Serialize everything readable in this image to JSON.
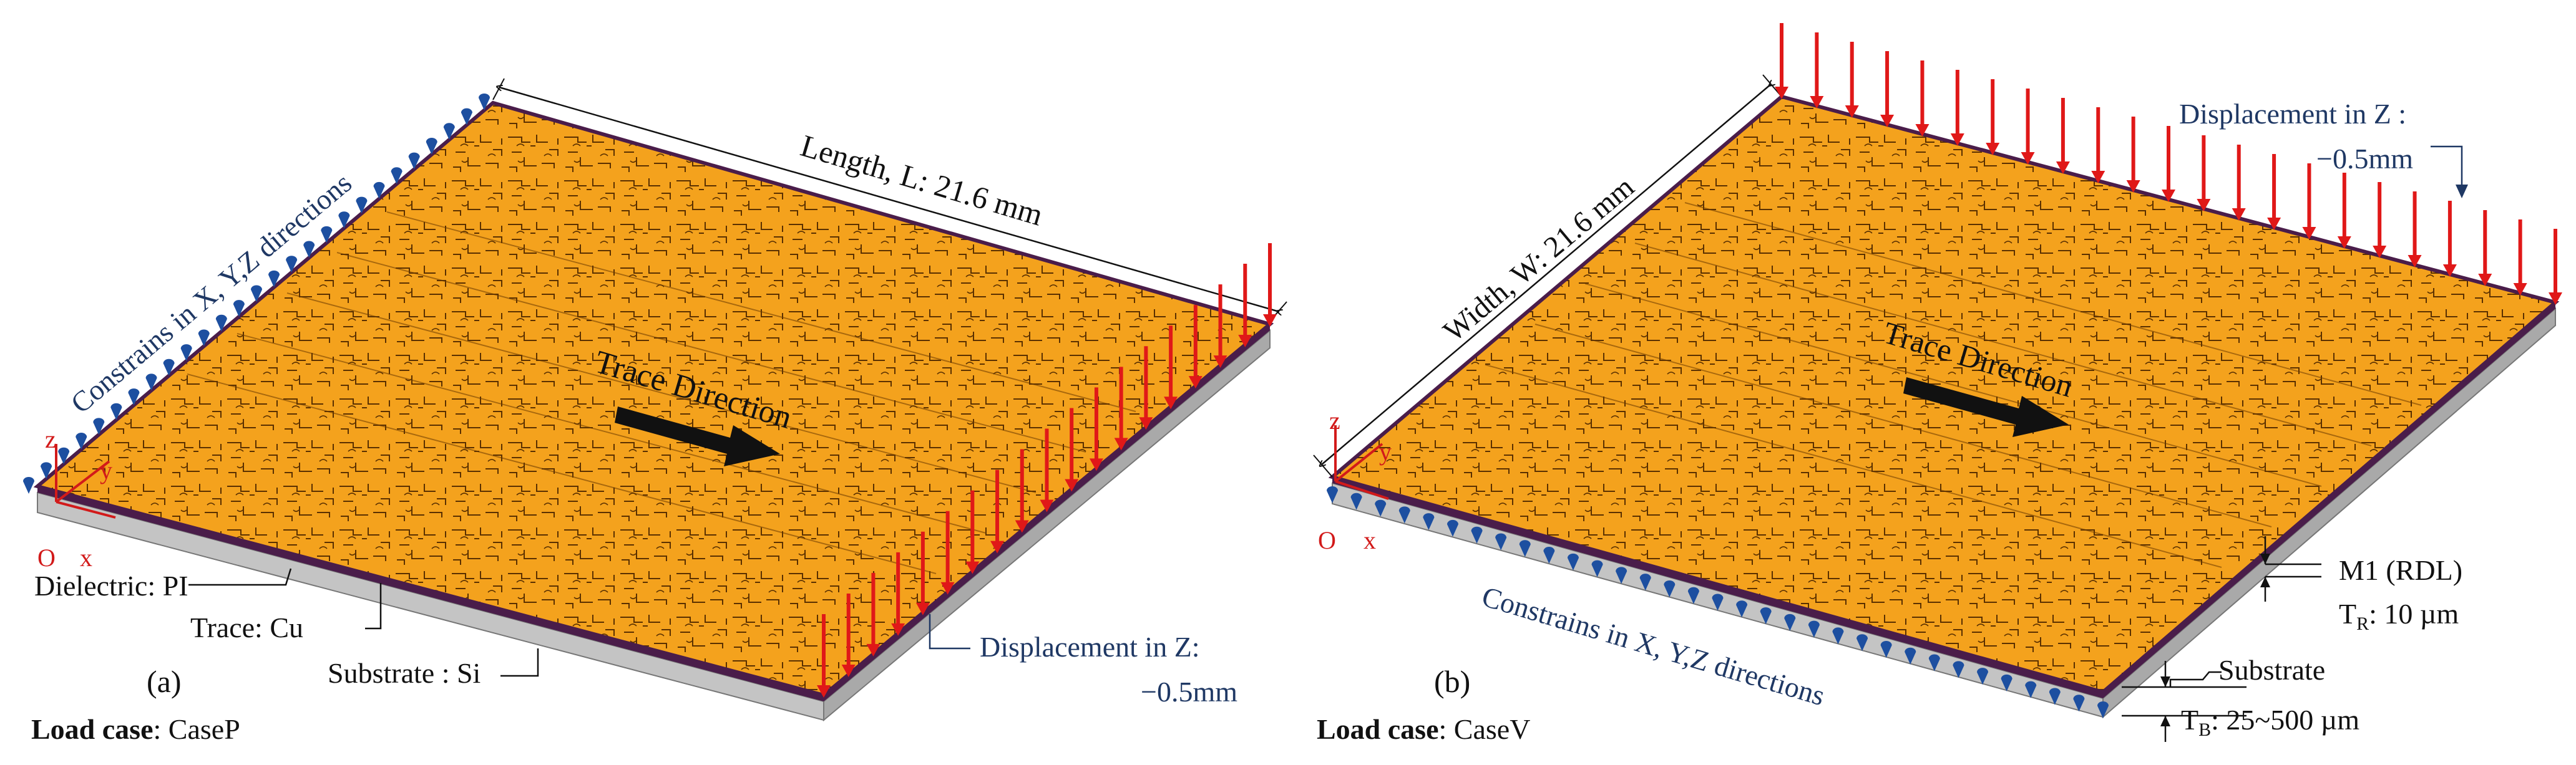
{
  "colors": {
    "plate_orange": "#f4a21d",
    "plate_edge": "#4a1d4a",
    "substrate_gray": "#c8c8c8",
    "load_arrow_red": "#e01818",
    "constraint_blue": "#1d4fa0",
    "annotation_navy": "#1f3864",
    "axis_red": "#d21a1a",
    "trace_arrow_black": "#111111"
  },
  "panel_a": {
    "label": "(a)",
    "load_case_label": "Load case",
    "load_case_value": ": CaseP",
    "length_dim": "Length, L: 21.6 mm",
    "constraint_text": "Constrains  in X, Y,Z directions",
    "trace_direction": "Trace Direction",
    "displacement_line1": "Displacement in Z:",
    "displacement_line2": "−0.5mm",
    "dielectric": "Dielectric: PI",
    "trace": "Trace: Cu",
    "substrate": "Substrate : Si",
    "axis_z": "z",
    "axis_y": "y",
    "axis_x": "x",
    "axis_o": "O"
  },
  "panel_b": {
    "label": "(b)",
    "load_case_label": "Load case",
    "load_case_value": ": CaseV",
    "width_dim": "Width, W: 21.6 mm",
    "constraint_text": "Constrains in X, Y,Z directions",
    "trace_direction": "Trace Direction",
    "displacement_line1": "Displacement in Z :",
    "displacement_line2": "−0.5mm",
    "m1_label": "M1 (RDL)",
    "tr_main": "T",
    "tr_sub": "R",
    "tr_value": ": 10 µm",
    "substrate_label": "Substrate",
    "tb_main": "T",
    "tb_sub": "B",
    "tb_value": ": 25~500 µm",
    "axis_z": "z",
    "axis_y": "y",
    "axis_x": "x",
    "axis_o": "O"
  }
}
